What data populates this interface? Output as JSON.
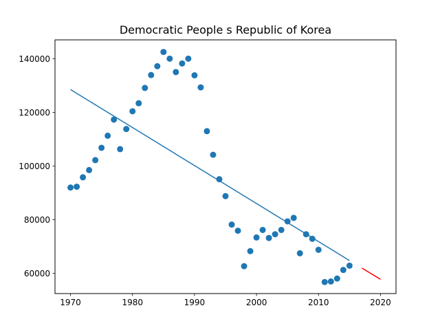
{
  "chart_data": {
    "type": "scatter",
    "title": "Democratic People s Republic of Korea",
    "xlabel": "",
    "ylabel": "",
    "xlim": [
      1967.5,
      2022.5
    ],
    "ylim": [
      52500,
      147000
    ],
    "xticks": [
      1970,
      1980,
      1990,
      2000,
      2010,
      2020
    ],
    "yticks": [
      60000,
      80000,
      100000,
      120000,
      140000
    ],
    "grid": false,
    "series": [
      {
        "kind": "scatter",
        "color": "#1f77b4",
        "points": [
          [
            1970,
            92000
          ],
          [
            1971,
            92300
          ],
          [
            1972,
            95800
          ],
          [
            1973,
            98500
          ],
          [
            1974,
            102200
          ],
          [
            1975,
            106800
          ],
          [
            1976,
            111300
          ],
          [
            1977,
            117300
          ],
          [
            1978,
            106300
          ],
          [
            1979,
            113800
          ],
          [
            1980,
            120400
          ],
          [
            1981,
            123400
          ],
          [
            1982,
            129100
          ],
          [
            1983,
            133900
          ],
          [
            1984,
            137200
          ],
          [
            1985,
            142500
          ],
          [
            1986,
            140000
          ],
          [
            1987,
            135000
          ],
          [
            1988,
            138200
          ],
          [
            1989,
            140000
          ],
          [
            1990,
            133800
          ],
          [
            1991,
            129300
          ],
          [
            1992,
            113000
          ],
          [
            1993,
            104200
          ],
          [
            1994,
            95100
          ],
          [
            1995,
            88800
          ],
          [
            1996,
            78200
          ],
          [
            1997,
            75900
          ],
          [
            1998,
            62700
          ],
          [
            1999,
            68300
          ],
          [
            2000,
            73400
          ],
          [
            2001,
            76200
          ],
          [
            2002,
            73200
          ],
          [
            2003,
            74600
          ],
          [
            2004,
            76200
          ],
          [
            2005,
            79400
          ],
          [
            2006,
            80700
          ],
          [
            2007,
            67500
          ],
          [
            2008,
            74600
          ],
          [
            2009,
            72900
          ],
          [
            2010,
            68800
          ],
          [
            2011,
            56800
          ],
          [
            2012,
            57000
          ],
          [
            2013,
            58100
          ],
          [
            2014,
            61300
          ],
          [
            2015,
            62900
          ]
        ]
      },
      {
        "kind": "line",
        "color": "#1f77b4",
        "points": [
          [
            1970,
            128500
          ],
          [
            2015,
            64800
          ]
        ]
      },
      {
        "kind": "line",
        "color": "#ff0000",
        "points": [
          [
            2017,
            62000
          ],
          [
            2020,
            57800
          ]
        ]
      }
    ]
  }
}
